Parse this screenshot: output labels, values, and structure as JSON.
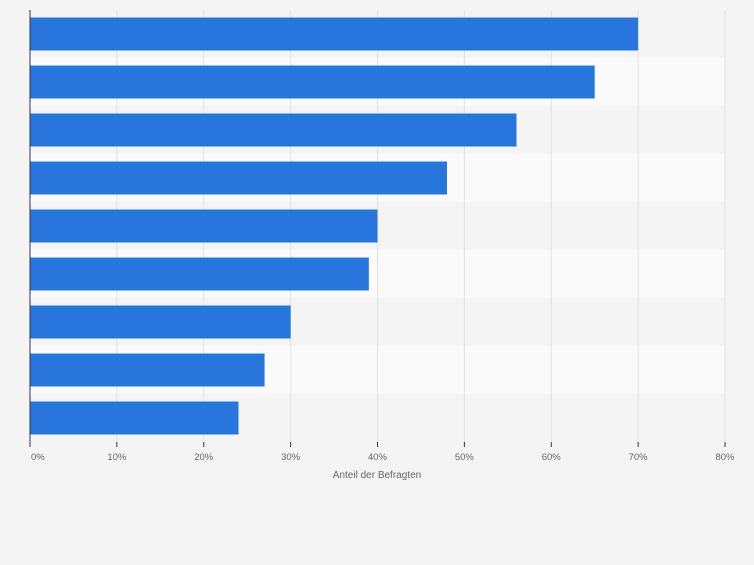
{
  "colors": {
    "background": "#f4f4f4",
    "plot_band_a": "#f4f4f4",
    "plot_band_b": "#fafafa",
    "bar": "#2876dd",
    "grid": "#e2e2e2",
    "axis": "#333333",
    "tick_text": "#666666"
  },
  "chart_data": {
    "type": "bar",
    "orientation": "horizontal",
    "title": "",
    "xlabel": "Anteil der Befragten",
    "ylabel": "",
    "xlim": [
      0,
      80
    ],
    "x_ticks": [
      0,
      10,
      20,
      30,
      40,
      50,
      60,
      70,
      80
    ],
    "x_tick_labels": [
      "0%",
      "10%",
      "20%",
      "30%",
      "40%",
      "50%",
      "60%",
      "70%",
      "80%"
    ],
    "categories": [
      "",
      "",
      "",
      "",
      "",
      "",
      "",
      "",
      ""
    ],
    "values": [
      70,
      65,
      56,
      48,
      40,
      39,
      30,
      27,
      24
    ],
    "unit": "%",
    "grid": true,
    "legend": "none"
  }
}
